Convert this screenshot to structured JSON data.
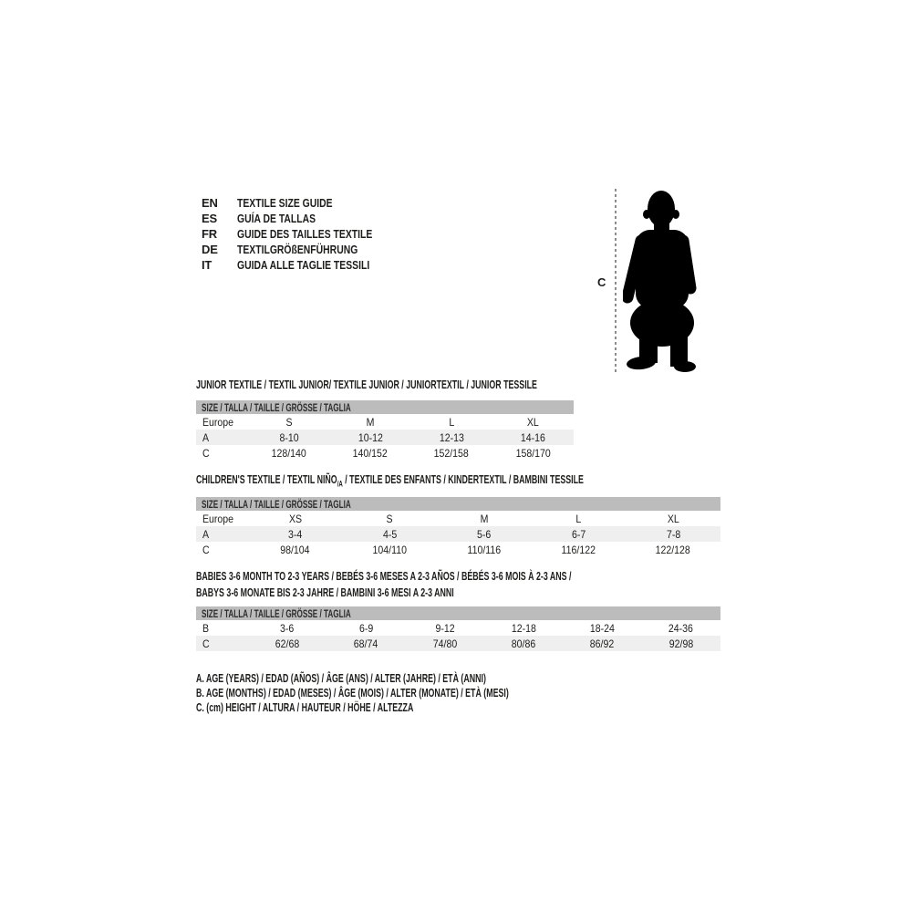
{
  "languages": [
    {
      "code": "EN",
      "text": "TEXTILE SIZE GUIDE"
    },
    {
      "code": "ES",
      "text": "GUÍA DE TALLAS"
    },
    {
      "code": "FR",
      "text": "GUIDE DES TAILLES TEXTILE"
    },
    {
      "code": "DE",
      "text": "TEXTILGRÖßENFÜHRUNG"
    },
    {
      "code": "IT",
      "text": "GUIDA ALLE TAGLIE TESSILI"
    }
  ],
  "figure": {
    "icon": "toddler-silhouette",
    "height_label": "C"
  },
  "tables": [
    {
      "title": "JUNIOR TEXTILE / TEXTIL JUNIOR/ TEXTILE JUNIOR / JUNIORTEXTIL / JUNIOR TESSILE",
      "size_header": "SIZE / TALLA / TAILLE / GRÖSSE / TAGLIA",
      "rows": [
        [
          "Europe",
          "S",
          "M",
          "L",
          "XL"
        ],
        [
          "A",
          "8-10",
          "10-12",
          "12-13",
          "14-16"
        ],
        [
          "C",
          "128/140",
          "140/152",
          "152/158",
          "158/170"
        ]
      ]
    },
    {
      "title_pre": "CHILDREN'S TEXTILE / TEXTIL NIÑO",
      "title_sub": "/A",
      "title_post": " / TEXTILE DES ENFANTS / KINDERTEXTIL / BAMBINI TESSILE",
      "size_header": "SIZE / TALLA / TAILLE / GRÖSSE / TAGLIA",
      "rows": [
        [
          "Europe",
          "XS",
          "S",
          "M",
          "L",
          "XL"
        ],
        [
          "A",
          "3-4",
          "4-5",
          "5-6",
          "6-7",
          "7-8"
        ],
        [
          "C",
          "98/104",
          "104/110",
          "110/116",
          "116/122",
          "122/128"
        ]
      ]
    },
    {
      "title_line1": "BABIES 3-6 MONTH TO 2-3 YEARS / BEBÉS 3-6 MESES A 2-3 AÑOS / BÉBÉS 3-6 MOIS À 2-3 ANS /",
      "title_line2": "BABYS 3-6 MONATE BIS 2-3 JAHRE / BAMBINI 3-6 MESI A 2-3 ANNI",
      "size_header": "SIZE / TALLA / TAILLE / GRÖSSE / TAGLIA",
      "rows": [
        [
          "B",
          "3-6",
          "6-9",
          "9-12",
          "12-18",
          "18-24",
          "24-36"
        ],
        [
          "C",
          "62/68",
          "68/74",
          "74/80",
          "80/86",
          "86/92",
          "92/98"
        ]
      ]
    }
  ],
  "legend": [
    "A. AGE (YEARS) / EDAD (AÑOS) / ÂGE (ANS) / ALTER (JAHRE) / ETÀ (ANNI)",
    "B. AGE (MONTHS) / EDAD (MESES) / ÂGE (MOIS) / ALTER (MONATE) / ETÀ (MESI)",
    "C. (cm) HEIGHT / ALTURA / HAUTEUR / HÖHE / ALTEZZA"
  ],
  "colors": {
    "background": "#ffffff",
    "text": "#1d1d1b",
    "size_header_bar": "#bcbcbc",
    "row_alt": "#efefef",
    "silhouette": "#000000",
    "dashed_line": "#8c8c8c"
  }
}
